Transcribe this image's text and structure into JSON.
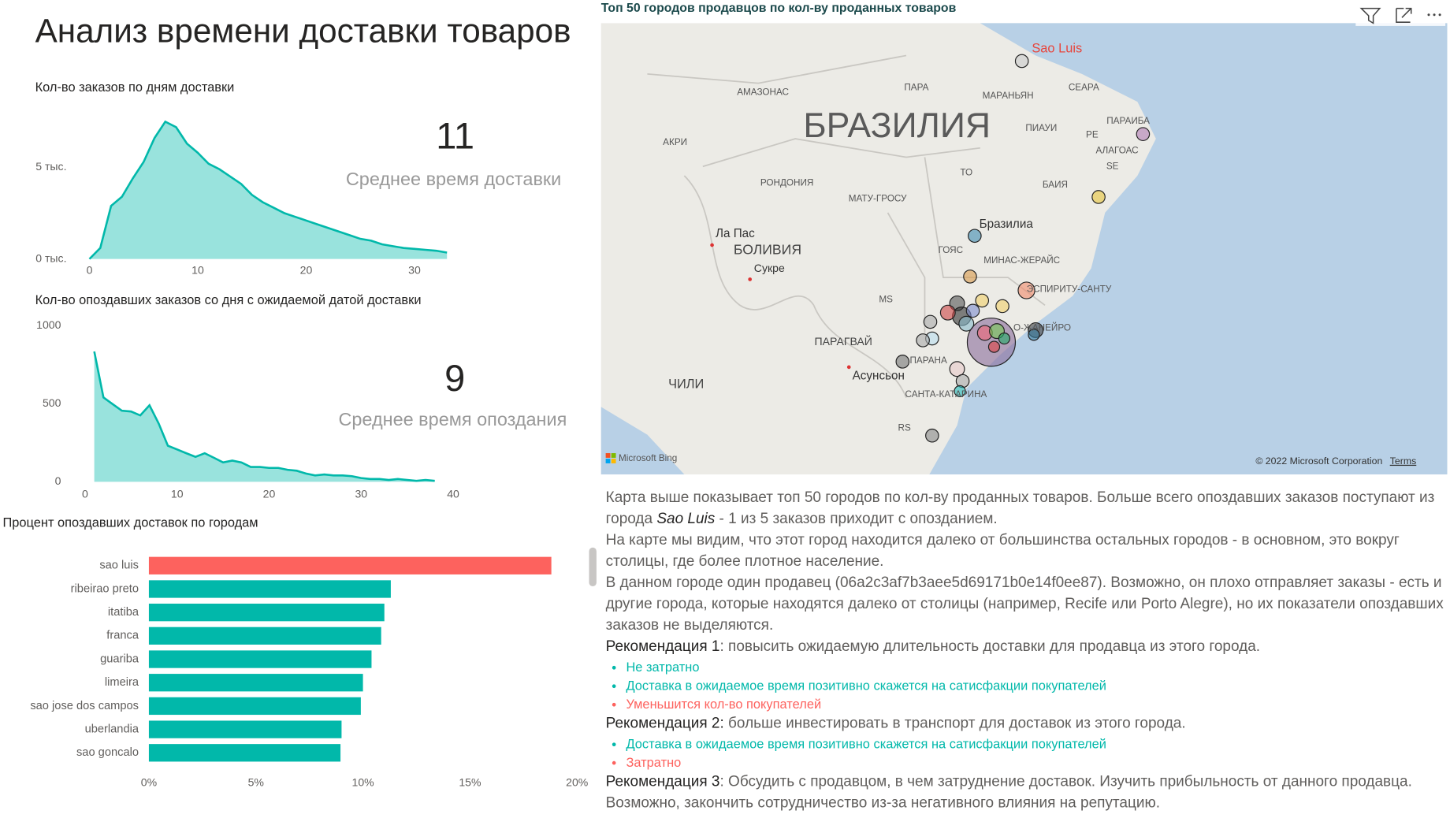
{
  "title": "Анализ времени доставки товаров",
  "chart_data": [
    {
      "type": "area",
      "title": "Кол-во заказов по дням доставки",
      "color": "#01b8aa",
      "x": [
        0,
        1,
        2,
        3,
        4,
        5,
        6,
        7,
        8,
        9,
        10,
        11,
        12,
        13,
        14,
        15,
        16,
        17,
        18,
        19,
        20,
        21,
        22,
        23,
        24,
        25,
        26,
        27,
        28,
        29,
        30,
        31,
        32,
        33
      ],
      "values": [
        0,
        600,
        2900,
        3400,
        4400,
        5300,
        6600,
        7500,
        7200,
        6300,
        5800,
        5200,
        4900,
        4500,
        4100,
        3500,
        3100,
        2800,
        2500,
        2300,
        2100,
        1900,
        1700,
        1500,
        1300,
        1100,
        1000,
        800,
        700,
        600,
        550,
        500,
        450,
        350
      ],
      "xlim": [
        -1,
        35.7
      ],
      "xticks": [
        0,
        10,
        20,
        30
      ],
      "ylim": [
        0,
        7800
      ],
      "yticks": [
        {
          "value": 0,
          "label": "0 тыс."
        },
        {
          "value": 5000,
          "label": "5 тыс."
        }
      ]
    },
    {
      "type": "area",
      "title": "Кол-во опоздавших заказов со дня с ожидаемой датой доставки",
      "color": "#01b8aa",
      "x": [
        1,
        2,
        3,
        4,
        5,
        6,
        7,
        8,
        9,
        10,
        11,
        12,
        13,
        14,
        15,
        16,
        17,
        18,
        19,
        20,
        21,
        22,
        23,
        24,
        25,
        26,
        27,
        28,
        29,
        30,
        31,
        32,
        33,
        34,
        35,
        36,
        37,
        38
      ],
      "values": [
        834,
        540,
        497,
        455,
        450,
        425,
        490,
        373,
        231,
        207,
        183,
        160,
        183,
        154,
        124,
        136,
        124,
        95,
        95,
        89,
        89,
        77,
        71,
        53,
        41,
        47,
        41,
        41,
        36,
        24,
        18,
        18,
        12,
        18,
        12,
        6,
        12,
        6
      ],
      "xlim": [
        -0.4,
        41
      ],
      "xticks": [
        0,
        10,
        20,
        30,
        40
      ],
      "ylim": [
        0,
        1000
      ],
      "yticks": [
        0,
        500,
        1000
      ]
    },
    {
      "type": "hbar",
      "title": "Процент опоздавших доставок по городам",
      "categories": [
        "sao luis",
        "ribeirao preto",
        "itatiba",
        "franca",
        "guariba",
        "limeira",
        "sao jose dos campos",
        "uberlandia",
        "sao goncalo"
      ],
      "values": [
        18.8,
        11.3,
        11.0,
        10.85,
        10.4,
        10.0,
        9.9,
        9.0,
        8.95
      ],
      "colors": [
        "#fd625e",
        "#01b8aa",
        "#01b8aa",
        "#01b8aa",
        "#01b8aa",
        "#01b8aa",
        "#01b8aa",
        "#01b8aa",
        "#01b8aa"
      ],
      "xlim": [
        0,
        20
      ],
      "xticks": [
        {
          "value": 0,
          "label": "0%"
        },
        {
          "value": 5,
          "label": "5%"
        },
        {
          "value": 10,
          "label": "10%"
        },
        {
          "value": 15,
          "label": "15%"
        },
        {
          "value": 20,
          "label": "20%"
        }
      ]
    }
  ],
  "kpis": [
    {
      "value": 11,
      "label": "Среднее время доставки"
    },
    {
      "value": 9,
      "label": "Среднее время опоздания"
    }
  ],
  "map": {
    "title": "Топ 50 городов продавцов по кол-ву проданных товаров",
    "labels": [
      "Sao Luis",
      "АМАЗОНАС",
      "ПАРА",
      "МАРАНЬЯН",
      "СЕАРА",
      "БРАЗИЛИЯ",
      "АКРИ",
      "ПИАУИ",
      "ПАРАИБА",
      "PE",
      "АЛАГОАС",
      "SE",
      "ТО",
      "БАИЯ",
      "РОНДОНИЯ",
      "МАТУ-ГРОСУ",
      "Бразилиа",
      "ГОЯС",
      "Ла Пас",
      "БОЛИВИЯ",
      "Сукре",
      "МИНАС-ЖЕРАЙС",
      "ЭСПИРИТУ-САНТУ",
      "MS",
      "ПАРАГВАЙ",
      "О-ЖАНЕЙРО",
      "ЧИЛИ",
      "Асунсьон",
      "ПАРАНА",
      "САНТА-КАТАРИНА",
      "RS"
    ],
    "brand": "Microsoft Bing",
    "copyright": "© 2022 Microsoft Corporation",
    "terms": "Terms"
  },
  "description": {
    "intro": [
      "Карта выше показывает топ 50 городов по кол-ву проданных товаров. Больше всего опоздавших заказов поступают из города ",
      "Sao Luis",
      " - 1 из 5 заказов приходит с опозданием."
    ],
    "paragraphs": [
      "На карте мы видим, что этот город находится далеко от большинства остальных городов - в основном, это вокруг столицы, где более плотное население.",
      "В данном городе один продавец (06a2c3af7b3aee5d69171b0e14f0ee87). Возможно, он плохо отправляет заказы - есть и другие города, которые находятся далеко от столицы (например, Recife или Porto Alegre), но их показатели опоздавших заказов не выделяются."
    ],
    "recommendations": [
      {
        "label": "Рекомендация 1",
        "text": ": повысить ожидаемую длительность доставки для продавца из этого города.",
        "points": [
          {
            "text": "Не затратно",
            "color": "#01b8aa"
          },
          {
            "text": "Доставка в ожидаемое время позитивно скажется на сатисфакции покупателей",
            "color": "#01b8aa"
          },
          {
            "text": "Уменьшится кол-во покупателей",
            "color": "#fd625e"
          }
        ]
      },
      {
        "label": "Рекомендация 2:",
        "text": " больше инвестировать в транспорт для доставок из этого города.",
        "points": [
          {
            "text": "Доставка в ожидаемое время позитивно скажется на сатисфакции покупателей",
            "color": "#01b8aa"
          },
          {
            "text": "Затратно",
            "color": "#fd625e"
          }
        ]
      },
      {
        "label": "Рекомендация 3",
        "text": ": Обсудить с продавцом, в чем затруднение доставок. Изучить прибыльность от данного продавца. Возможно, закончить сотрудничество из-за негативного влияния на репутацию.",
        "points": []
      }
    ]
  }
}
